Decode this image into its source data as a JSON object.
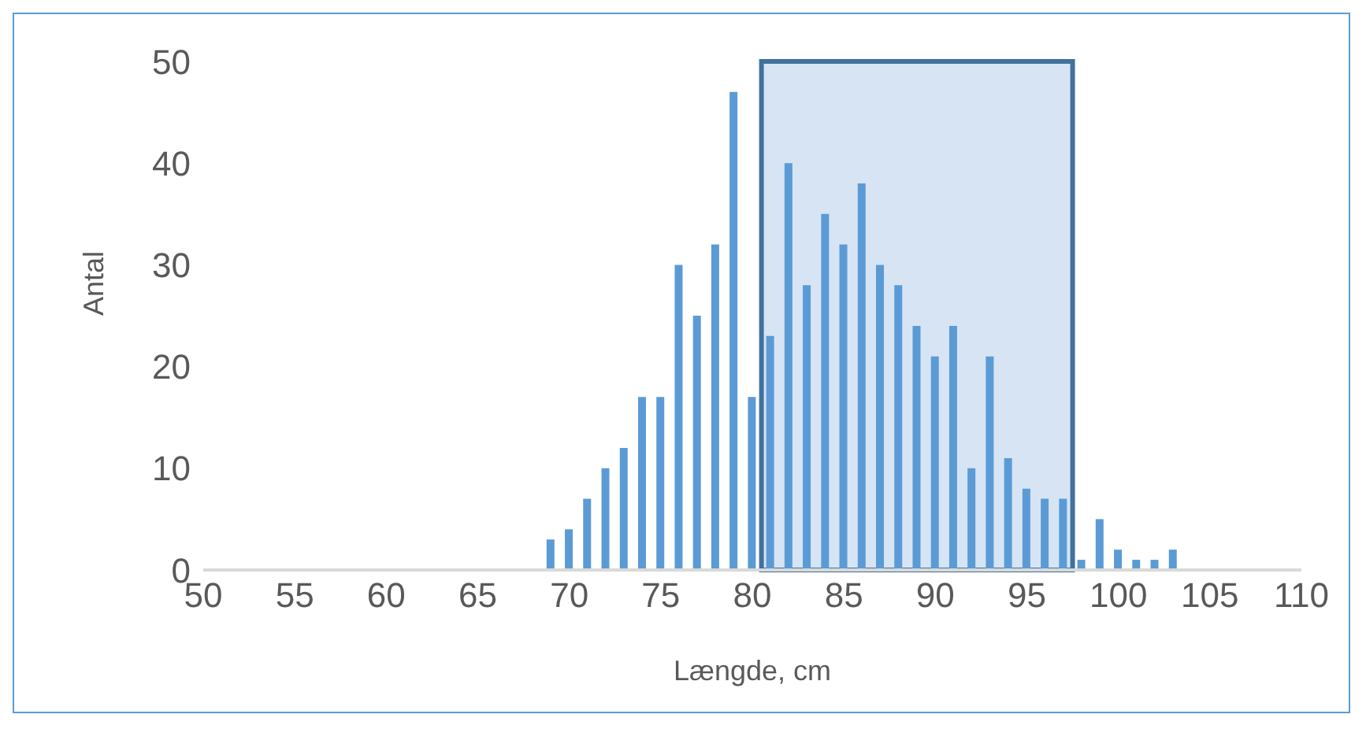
{
  "chart_data": {
    "type": "bar",
    "xlabel": "Længde, cm",
    "ylabel": "Antal",
    "x": [
      69,
      70,
      71,
      72,
      73,
      74,
      75,
      76,
      77,
      78,
      79,
      80,
      81,
      82,
      83,
      84,
      85,
      86,
      87,
      88,
      89,
      90,
      91,
      92,
      93,
      94,
      95,
      96,
      97,
      98,
      99,
      100,
      101,
      102,
      103
    ],
    "values": [
      3,
      4,
      7,
      10,
      12,
      17,
      17,
      30,
      25,
      32,
      47,
      17,
      23,
      40,
      28,
      35,
      32,
      38,
      30,
      28,
      24,
      21,
      24,
      10,
      21,
      11,
      8,
      7,
      7,
      1,
      5,
      2,
      1,
      1,
      2
    ],
    "color": "#5b9bd5",
    "xlim": [
      50,
      110
    ],
    "xticks": [
      50,
      55,
      60,
      65,
      70,
      75,
      80,
      85,
      90,
      95,
      100,
      105,
      110
    ],
    "ylim": [
      0,
      50
    ],
    "yticks": [
      0,
      10,
      20,
      30,
      40,
      50
    ],
    "grid": false,
    "legend": false,
    "bands": [
      {
        "axis": "x",
        "from": 80.5,
        "to": 97.5,
        "color": "#d6e4f4"
      }
    ]
  }
}
